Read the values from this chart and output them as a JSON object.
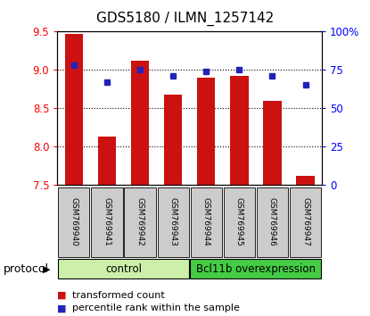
{
  "title": "GDS5180 / ILMN_1257142",
  "samples": [
    "GSM769940",
    "GSM769941",
    "GSM769942",
    "GSM769943",
    "GSM769944",
    "GSM769945",
    "GSM769946",
    "GSM769947"
  ],
  "bar_values": [
    9.47,
    8.13,
    9.12,
    8.68,
    8.9,
    8.92,
    8.6,
    7.62
  ],
  "dot_values": [
    78,
    67,
    75,
    71,
    74,
    75,
    71,
    65
  ],
  "ylim_left": [
    7.5,
    9.5
  ],
  "ylim_right": [
    0,
    100
  ],
  "yticks_left": [
    7.5,
    8.0,
    8.5,
    9.0,
    9.5
  ],
  "yticks_right": [
    0,
    25,
    50,
    75,
    100
  ],
  "ytick_labels_right": [
    "0",
    "25",
    "50",
    "75",
    "100%"
  ],
  "bar_color": "#cc1111",
  "dot_color": "#2222bb",
  "bar_bottom": 7.5,
  "control_color": "#ccf0aa",
  "bcl_color": "#44cc44",
  "protocol_label": "protocol",
  "legend_bar_label": "transformed count",
  "legend_dot_label": "percentile rank within the sample",
  "background_color": "#ffffff",
  "plot_bg_color": "#ffffff",
  "label_box_color": "#cccccc",
  "title_fontsize": 11,
  "tick_fontsize": 8.5,
  "label_fontsize": 8,
  "sample_fontsize": 6.5,
  "protocol_fontsize": 8.5,
  "legend_fontsize": 8
}
